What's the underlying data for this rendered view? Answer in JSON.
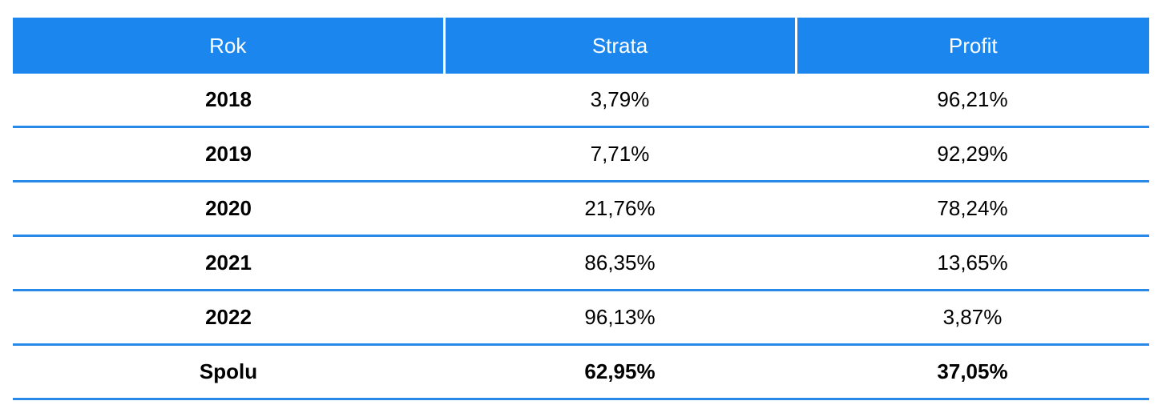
{
  "table": {
    "headers": [
      "Rok",
      "Strata",
      "Profit"
    ],
    "rows": [
      {
        "rok": "2018",
        "strata": "3,79%",
        "profit": "96,21%"
      },
      {
        "rok": "2019",
        "strata": "7,71%",
        "profit": "92,29%"
      },
      {
        "rok": "2020",
        "strata": "21,76%",
        "profit": "78,24%"
      },
      {
        "rok": "2021",
        "strata": "86,35%",
        "profit": "13,65%"
      },
      {
        "rok": "2022",
        "strata": "96,13%",
        "profit": "3,87%"
      }
    ],
    "total": {
      "rok": "Spolu",
      "strata": "62,95%",
      "profit": "37,05%"
    }
  },
  "colors": {
    "header_bg": "#1a86ee",
    "header_text": "#ffffff",
    "row_divider": "#2a89e6"
  }
}
